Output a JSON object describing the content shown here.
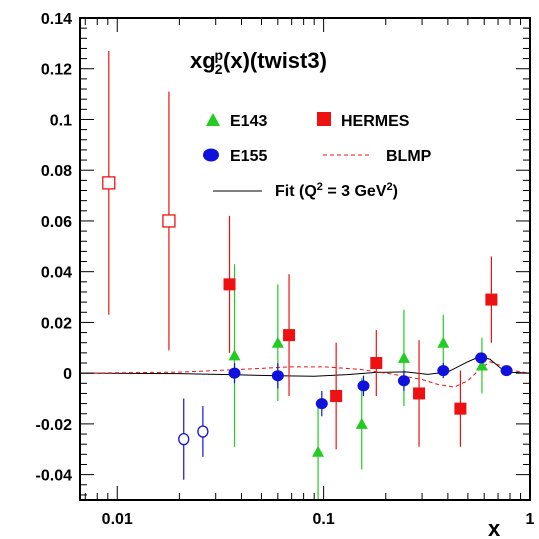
{
  "chart_data": {
    "type": "scatter",
    "title": "xg2p(x)(twist3)",
    "title_parts": {
      "base": "xg",
      "sub": "2",
      "sup": "p",
      "rest": "(x)(twist3)"
    },
    "xlabel": "x",
    "x_scale": "log",
    "xlim": [
      0.0066,
      1.0
    ],
    "ylim": [
      -0.05,
      0.14
    ],
    "x_ticks": [
      0.01,
      0.1,
      1
    ],
    "x_tick_labels": [
      "0.01",
      "0.1",
      "1"
    ],
    "y_ticks": [
      -0.04,
      -0.02,
      0,
      0.02,
      0.04,
      0.06,
      0.08,
      0.1,
      0.12,
      0.14
    ],
    "y_tick_labels": [
      "-0.04",
      "-0.02",
      "0",
      "0.02",
      "0.04",
      "0.06",
      "0.08",
      "0.1",
      "0.12",
      "0.14"
    ],
    "grid": false,
    "legend_placement": "top-right",
    "legend": {
      "e143": "E143",
      "hermes": "HERMES",
      "e155": "E155",
      "blmp": "BLMP",
      "fit_prefix": "Fit (Q",
      "fit_sup": "2",
      "fit_mid": " = 3 GeV",
      "fit_sup2": "2",
      "fit_suffix": ")"
    },
    "colors": {
      "e143": "#22cc22",
      "hermes": "#ee1111",
      "e155": "#1111dd",
      "fit": "#000000",
      "blmp": "#ee1111"
    },
    "series": [
      {
        "key": "e143",
        "marker": "triangle",
        "points": [
          {
            "x": 0.037,
            "y": 0.007,
            "err": 0.036
          },
          {
            "x": 0.06,
            "y": 0.012,
            "err": 0.023
          },
          {
            "x": 0.094,
            "y": -0.031,
            "err": 0.019
          },
          {
            "x": 0.153,
            "y": -0.02,
            "err": 0.018
          },
          {
            "x": 0.245,
            "y": 0.006,
            "err": 0.019
          },
          {
            "x": 0.38,
            "y": 0.012,
            "err": 0.011
          },
          {
            "x": 0.585,
            "y": 0.003,
            "err": 0.011
          }
        ]
      },
      {
        "key": "hermes",
        "marker": "square",
        "points": [
          {
            "x": 0.0091,
            "y": 0.075,
            "err": 0.052,
            "open": true
          },
          {
            "x": 0.0178,
            "y": 0.06,
            "err": 0.051,
            "open": true
          },
          {
            "x": 0.035,
            "y": 0.035,
            "err": 0.027
          },
          {
            "x": 0.068,
            "y": 0.015,
            "err": 0.024
          },
          {
            "x": 0.115,
            "y": -0.009,
            "err": 0.021
          },
          {
            "x": 0.18,
            "y": 0.004,
            "err": 0.013
          },
          {
            "x": 0.29,
            "y": -0.008,
            "err": 0.021
          },
          {
            "x": 0.46,
            "y": -0.014,
            "err": 0.015
          },
          {
            "x": 0.65,
            "y": 0.029,
            "err": 0.017
          }
        ]
      },
      {
        "key": "e155",
        "marker": "circle",
        "points": [
          {
            "x": 0.021,
            "y": -0.026,
            "err": 0.016,
            "open": true
          },
          {
            "x": 0.026,
            "y": -0.023,
            "err": 0.01,
            "open": true
          },
          {
            "x": 0.037,
            "y": 0.0,
            "err": 0.004
          },
          {
            "x": 0.06,
            "y": -0.001,
            "err": 0.005
          },
          {
            "x": 0.098,
            "y": -0.012,
            "err": 0.005
          },
          {
            "x": 0.156,
            "y": -0.005,
            "err": 0.004
          },
          {
            "x": 0.245,
            "y": -0.003,
            "err": 0.004
          },
          {
            "x": 0.38,
            "y": 0.001,
            "err": 0.003
          },
          {
            "x": 0.58,
            "y": 0.006,
            "err": 0.002
          },
          {
            "x": 0.77,
            "y": 0.001,
            "err": 0.002
          }
        ]
      }
    ],
    "curves": [
      {
        "key": "fit",
        "style": "solid",
        "points": [
          [
            0.0066,
            0.0
          ],
          [
            0.02,
            -0.0002
          ],
          [
            0.035,
            -0.0006
          ],
          [
            0.06,
            -0.001
          ],
          [
            0.09,
            -0.0012
          ],
          [
            0.13,
            -0.0006
          ],
          [
            0.18,
            0.0003
          ],
          [
            0.25,
            0.0005
          ],
          [
            0.32,
            -0.0005
          ],
          [
            0.4,
            0.0005
          ],
          [
            0.5,
            0.0045
          ],
          [
            0.57,
            0.0065
          ],
          [
            0.64,
            0.0055
          ],
          [
            0.72,
            0.002
          ],
          [
            0.82,
            0.0003
          ],
          [
            1.0,
            0.0
          ]
        ]
      },
      {
        "key": "blmp",
        "style": "dashed",
        "points": [
          [
            0.0066,
            0.0
          ],
          [
            0.02,
            0.0004
          ],
          [
            0.04,
            0.0015
          ],
          [
            0.07,
            0.0025
          ],
          [
            0.1,
            0.0025
          ],
          [
            0.15,
            0.0015
          ],
          [
            0.22,
            -0.0005
          ],
          [
            0.3,
            -0.0025
          ],
          [
            0.36,
            -0.0045
          ],
          [
            0.43,
            -0.0055
          ],
          [
            0.5,
            -0.003
          ],
          [
            0.57,
            0.0015
          ],
          [
            0.64,
            0.0045
          ],
          [
            0.72,
            0.003
          ],
          [
            0.82,
            0.001
          ],
          [
            1.0,
            0.0
          ]
        ]
      }
    ]
  }
}
